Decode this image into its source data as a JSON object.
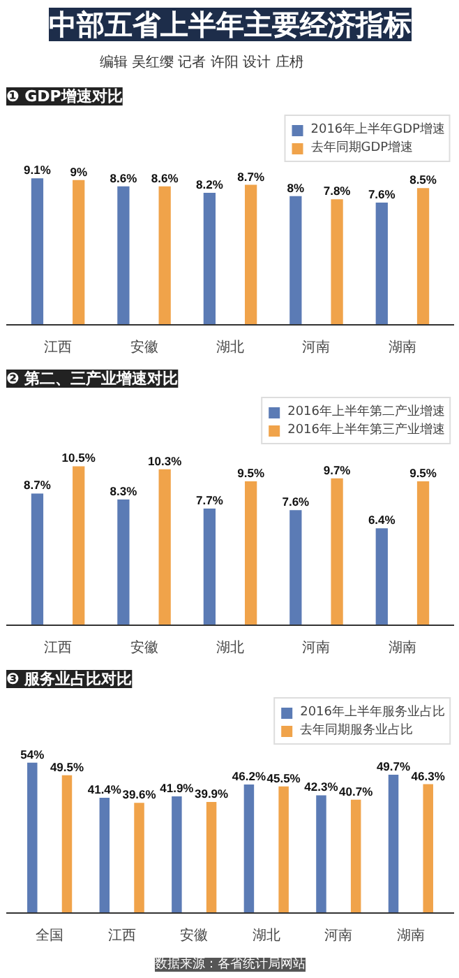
{
  "chart_data": [
    {
      "type": "bar",
      "title": "中部五省上半年主要经济指标",
      "subtitle": "编辑  吴红缨      记者  许阳      设计  庄枬",
      "annotations": [
        "❶ GDP增速对比"
      ],
      "categories": [
        "江西",
        "安徽",
        "湖北",
        "河南",
        "湖南"
      ],
      "tick_labels": "x",
      "legend": "top right",
      "series": [
        {
          "name": "2016年上半年GDP增速",
          "color": "#5b7bb5",
          "values": [
            9.1,
            8.6,
            8.2,
            8,
            7.6
          ],
          "value_labels": [
            "9.1%",
            "8.6%",
            "8.2%",
            "8%",
            "7.6%"
          ]
        },
        {
          "name": "去年同期GDP增速",
          "color": "#f0a34a",
          "values": [
            9,
            8.6,
            8.7,
            7.8,
            8.5
          ],
          "value_labels": [
            "9%",
            "8.6%",
            "8.7%",
            "7.8%",
            "8.5%"
          ]
        }
      ]
    },
    {
      "type": "bar",
      "title": "❷ 第二、三产业增速对比",
      "categories": [
        "江西",
        "安徽",
        "湖北",
        "河南",
        "湖南"
      ],
      "tick_labels": "x",
      "legend": "top right",
      "series": [
        {
          "name": "2016年上半年第二产业增速",
          "color": "#5b7bb5",
          "values": [
            8.7,
            8.3,
            7.7,
            7.6,
            6.4
          ],
          "value_labels": [
            "8.7%",
            "8.3%",
            "7.7%",
            "7.6%",
            "6.4%"
          ]
        },
        {
          "name": "2016年上半年第三产业增速",
          "color": "#f0a34a",
          "values": [
            10.5,
            10.3,
            9.5,
            9.7,
            9.5
          ],
          "value_labels": [
            "10.5%",
            "10.3%",
            "9.5%",
            "9.7%",
            "9.5%"
          ]
        }
      ]
    },
    {
      "type": "bar",
      "title": "❸ 服务业占比对比",
      "categories": [
        "全国",
        "江西",
        "安徽",
        "湖北",
        "河南",
        "湖南"
      ],
      "tick_labels": "x",
      "legend": "top right",
      "annotations": [
        "数据来源：各省统计局网站"
      ],
      "series": [
        {
          "name": "2016年上半年服务业占比",
          "color": "#5b7bb5",
          "values": [
            54,
            41.4,
            41.9,
            46.2,
            42.3,
            49.7
          ],
          "value_labels": [
            "54%",
            "41.4%",
            "41.9%",
            "46.2%",
            "42.3%",
            "49.7%"
          ]
        },
        {
          "name": "去年同期服务业占比",
          "color": "#f0a34a",
          "values": [
            49.5,
            39.6,
            39.9,
            45.5,
            40.7,
            46.3
          ],
          "value_labels": [
            "49.5%",
            "39.6%",
            "39.9%",
            "45.5%",
            "40.7%",
            "46.3%"
          ]
        }
      ]
    }
  ]
}
